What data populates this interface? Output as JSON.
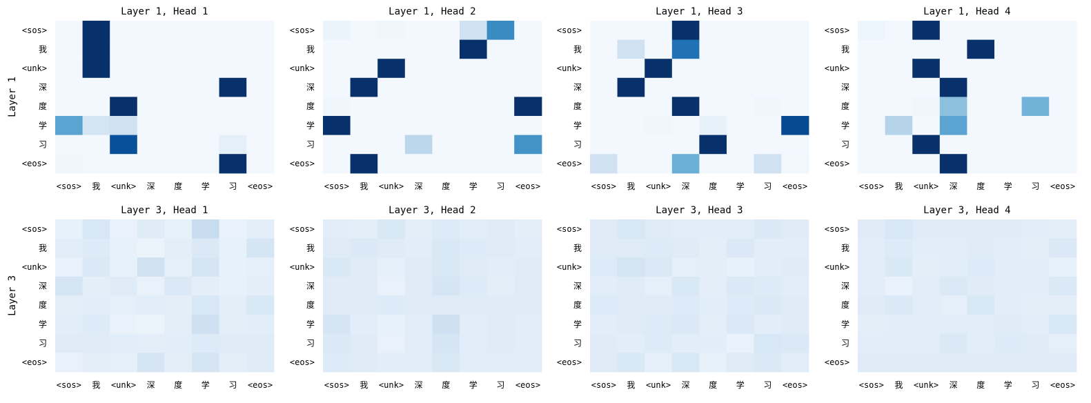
{
  "chart_data": {
    "type": "heatmap",
    "colormap": "Blues",
    "value_range": [
      0,
      1
    ],
    "tokens": [
      "<sos>",
      "我",
      "<unk>",
      "深",
      "度",
      "学",
      "习",
      "<eos>"
    ],
    "row_labels": [
      "Layer 1",
      "Layer 3"
    ],
    "panels": [
      {
        "title": "Layer 1, Head 1",
        "values": [
          [
            0.02,
            1.0,
            0.02,
            0.02,
            0.02,
            0.02,
            0.02,
            0.02
          ],
          [
            0.02,
            1.0,
            0.02,
            0.02,
            0.02,
            0.02,
            0.02,
            0.02
          ],
          [
            0.02,
            1.0,
            0.02,
            0.02,
            0.02,
            0.02,
            0.02,
            0.02
          ],
          [
            0.02,
            0.02,
            0.02,
            0.02,
            0.02,
            0.02,
            1.0,
            0.02
          ],
          [
            0.02,
            0.02,
            1.0,
            0.02,
            0.02,
            0.02,
            0.02,
            0.02
          ],
          [
            0.55,
            0.18,
            0.2,
            0.02,
            0.03,
            0.03,
            0.03,
            0.02
          ],
          [
            0.02,
            0.02,
            0.88,
            0.02,
            0.02,
            0.02,
            0.09,
            0.02
          ],
          [
            0.04,
            0.02,
            0.02,
            0.02,
            0.02,
            0.02,
            1.0,
            0.02
          ]
        ]
      },
      {
        "title": "Layer 1, Head 2",
        "values": [
          [
            0.06,
            0.02,
            0.04,
            0.02,
            0.02,
            0.2,
            0.65,
            0.02
          ],
          [
            0.02,
            0.02,
            0.02,
            0.02,
            0.02,
            1.0,
            0.02,
            0.02
          ],
          [
            0.02,
            0.02,
            1.0,
            0.02,
            0.02,
            0.02,
            0.02,
            0.02
          ],
          [
            0.02,
            1.0,
            0.02,
            0.02,
            0.02,
            0.02,
            0.02,
            0.02
          ],
          [
            0.04,
            0.02,
            0.02,
            0.02,
            0.03,
            0.02,
            0.02,
            1.0
          ],
          [
            1.0,
            0.02,
            0.02,
            0.02,
            0.02,
            0.02,
            0.02,
            0.02
          ],
          [
            0.02,
            0.02,
            0.02,
            0.28,
            0.02,
            0.02,
            0.02,
            0.62
          ],
          [
            0.02,
            1.0,
            0.02,
            0.02,
            0.02,
            0.02,
            0.02,
            0.02
          ]
        ]
      },
      {
        "title": "Layer 1, Head 3",
        "values": [
          [
            0.02,
            0.02,
            0.02,
            1.0,
            0.02,
            0.02,
            0.02,
            0.02
          ],
          [
            0.02,
            0.2,
            0.02,
            0.75,
            0.02,
            0.02,
            0.02,
            0.02
          ],
          [
            0.02,
            0.02,
            1.0,
            0.02,
            0.02,
            0.02,
            0.02,
            0.02
          ],
          [
            0.02,
            1.0,
            0.02,
            0.02,
            0.02,
            0.03,
            0.02,
            0.02
          ],
          [
            0.02,
            0.02,
            0.02,
            1.0,
            0.02,
            0.02,
            0.04,
            0.02
          ],
          [
            0.02,
            0.02,
            0.04,
            0.02,
            0.08,
            0.02,
            0.02,
            0.9
          ],
          [
            0.02,
            0.02,
            0.02,
            0.02,
            1.0,
            0.02,
            0.02,
            0.02
          ],
          [
            0.2,
            0.02,
            0.02,
            0.5,
            0.02,
            0.02,
            0.2,
            0.03
          ]
        ]
      },
      {
        "title": "Layer 1, Head 4",
        "values": [
          [
            0.05,
            0.02,
            1.0,
            0.02,
            0.02,
            0.02,
            0.02,
            0.02
          ],
          [
            0.02,
            0.02,
            0.02,
            0.02,
            1.0,
            0.02,
            0.02,
            0.02
          ],
          [
            0.02,
            0.02,
            1.0,
            0.02,
            0.02,
            0.02,
            0.02,
            0.02
          ],
          [
            0.02,
            0.02,
            0.02,
            1.0,
            0.02,
            0.02,
            0.02,
            0.02
          ],
          [
            0.02,
            0.02,
            0.04,
            0.42,
            0.02,
            0.02,
            0.48,
            0.02
          ],
          [
            0.02,
            0.3,
            0.02,
            0.55,
            0.02,
            0.02,
            0.02,
            0.02
          ],
          [
            0.02,
            0.02,
            1.0,
            0.02,
            0.02,
            0.02,
            0.02,
            0.02
          ],
          [
            0.02,
            0.02,
            0.02,
            1.0,
            0.02,
            0.02,
            0.02,
            0.02
          ]
        ]
      },
      {
        "title": "Layer 3, Head 1",
        "values": [
          [
            0.08,
            0.16,
            0.07,
            0.12,
            0.08,
            0.24,
            0.07,
            0.1
          ],
          [
            0.11,
            0.13,
            0.08,
            0.06,
            0.1,
            0.14,
            0.08,
            0.17
          ],
          [
            0.07,
            0.14,
            0.08,
            0.2,
            0.09,
            0.17,
            0.08,
            0.09
          ],
          [
            0.17,
            0.1,
            0.12,
            0.07,
            0.14,
            0.1,
            0.08,
            0.1
          ],
          [
            0.1,
            0.11,
            0.09,
            0.11,
            0.1,
            0.16,
            0.1,
            0.15
          ],
          [
            0.11,
            0.13,
            0.07,
            0.06,
            0.1,
            0.21,
            0.1,
            0.11
          ],
          [
            0.12,
            0.12,
            0.11,
            0.1,
            0.11,
            0.13,
            0.12,
            0.12
          ],
          [
            0.07,
            0.1,
            0.09,
            0.17,
            0.1,
            0.17,
            0.1,
            0.12
          ]
        ]
      },
      {
        "title": "Layer 3, Head 2",
        "values": [
          [
            0.11,
            0.1,
            0.15,
            0.1,
            0.13,
            0.11,
            0.12,
            0.1
          ],
          [
            0.12,
            0.14,
            0.12,
            0.11,
            0.15,
            0.13,
            0.12,
            0.11
          ],
          [
            0.15,
            0.12,
            0.09,
            0.12,
            0.15,
            0.12,
            0.11,
            0.12
          ],
          [
            0.12,
            0.12,
            0.07,
            0.12,
            0.17,
            0.13,
            0.1,
            0.12
          ],
          [
            0.12,
            0.12,
            0.13,
            0.12,
            0.12,
            0.12,
            0.12,
            0.12
          ],
          [
            0.17,
            0.11,
            0.08,
            0.11,
            0.21,
            0.11,
            0.12,
            0.11
          ],
          [
            0.14,
            0.12,
            0.07,
            0.11,
            0.17,
            0.11,
            0.12,
            0.11
          ],
          [
            0.13,
            0.12,
            0.11,
            0.11,
            0.15,
            0.11,
            0.11,
            0.11
          ]
        ]
      },
      {
        "title": "Layer 3, Head 3",
        "values": [
          [
            0.12,
            0.16,
            0.12,
            0.11,
            0.11,
            0.11,
            0.14,
            0.12
          ],
          [
            0.12,
            0.12,
            0.13,
            0.12,
            0.1,
            0.14,
            0.11,
            0.11
          ],
          [
            0.13,
            0.18,
            0.14,
            0.09,
            0.1,
            0.08,
            0.11,
            0.12
          ],
          [
            0.11,
            0.12,
            0.09,
            0.15,
            0.1,
            0.14,
            0.13,
            0.11
          ],
          [
            0.13,
            0.12,
            0.12,
            0.13,
            0.11,
            0.13,
            0.14,
            0.12
          ],
          [
            0.11,
            0.12,
            0.13,
            0.14,
            0.1,
            0.14,
            0.11,
            0.12
          ],
          [
            0.12,
            0.11,
            0.13,
            0.11,
            0.11,
            0.07,
            0.16,
            0.14
          ],
          [
            0.12,
            0.15,
            0.09,
            0.15,
            0.08,
            0.12,
            0.14,
            0.11
          ]
        ]
      },
      {
        "title": "Layer 3, Head 4",
        "values": [
          [
            0.12,
            0.16,
            0.12,
            0.12,
            0.12,
            0.12,
            0.11,
            0.1
          ],
          [
            0.11,
            0.13,
            0.11,
            0.11,
            0.12,
            0.11,
            0.1,
            0.14
          ],
          [
            0.11,
            0.15,
            0.1,
            0.11,
            0.13,
            0.11,
            0.11,
            0.08
          ],
          [
            0.11,
            0.07,
            0.11,
            0.14,
            0.12,
            0.11,
            0.11,
            0.14
          ],
          [
            0.12,
            0.14,
            0.11,
            0.09,
            0.15,
            0.11,
            0.1,
            0.1
          ],
          [
            0.1,
            0.11,
            0.11,
            0.11,
            0.11,
            0.12,
            0.11,
            0.15
          ],
          [
            0.11,
            0.11,
            0.11,
            0.14,
            0.11,
            0.13,
            0.12,
            0.09
          ],
          [
            0.12,
            0.12,
            0.12,
            0.12,
            0.12,
            0.12,
            0.12,
            0.12
          ]
        ]
      }
    ]
  }
}
